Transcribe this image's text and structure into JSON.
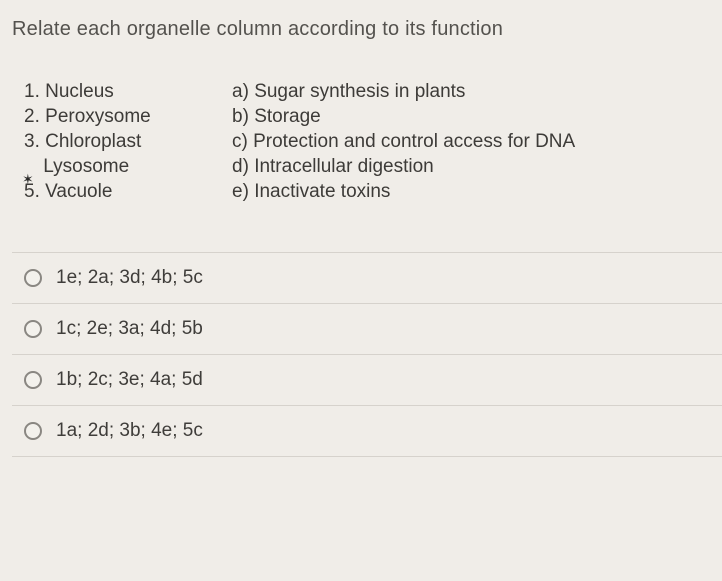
{
  "colors": {
    "background": "#f0ede8",
    "text_muted": "#54524e",
    "text_body": "#3d3b38",
    "divider": "#d6d2cc",
    "radio_border": "#8a8782"
  },
  "typography": {
    "title_fontsize": 20,
    "body_fontsize": 19,
    "line_height": 1.32,
    "font_family": "Arial"
  },
  "question": {
    "prompt": "Relate each organelle column according to its function"
  },
  "organelles": [
    {
      "index": "1.",
      "label": "Nucleus",
      "marked": false
    },
    {
      "index": "2.",
      "label": "Peroxysome",
      "marked": false
    },
    {
      "index": "3.",
      "label": "Chloroplast",
      "marked": false
    },
    {
      "index": "",
      "label": "Lysosome",
      "marked": true
    },
    {
      "index": "5.",
      "label": "Vacuole",
      "marked": false
    }
  ],
  "functions": [
    {
      "index": "a)",
      "label": "Sugar synthesis in plants"
    },
    {
      "index": "b)",
      "label": "Storage"
    },
    {
      "index": "c)",
      "label": "Protection and control access for DNA"
    },
    {
      "index": "d)",
      "label": "Intracellular digestion"
    },
    {
      "index": "e)",
      "label": "Inactivate toxins"
    }
  ],
  "options": [
    {
      "text": "1e; 2a; 3d; 4b; 5c",
      "selected": false
    },
    {
      "text": "1c; 2e; 3a; 4d; 5b",
      "selected": false
    },
    {
      "text": "1b; 2c; 3e; 4a; 5d",
      "selected": false
    },
    {
      "text": "1a; 2d; 3b; 4e; 5c",
      "selected": false
    }
  ]
}
